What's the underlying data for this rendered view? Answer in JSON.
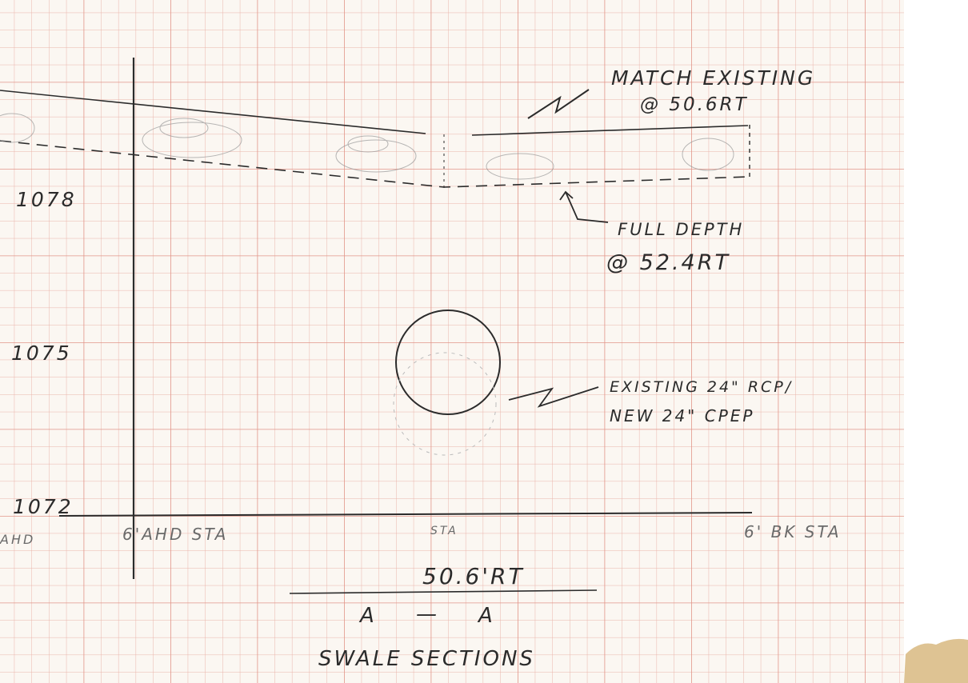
{
  "sheet": {
    "paper_color": "#fbf7f2",
    "grid_color": "#e8a49a",
    "ink_color": "#2b2b2b",
    "stain_color": "#d8b880"
  },
  "elevation_labels": [
    "1078",
    "1075",
    "1072"
  ],
  "station_labels": {
    "left_edge": "AHD",
    "ahead": "6'AHD STA",
    "center": "STA",
    "back": "6' BK STA"
  },
  "annotations": {
    "match_existing_line1": "MATCH EXISTING",
    "match_existing_line2": "@ 50.6RT",
    "full_depth_line1": "FULL DEPTH",
    "full_depth_line2": "@ 52.4RT",
    "pipe_line1": "EXISTING 24\" RCP/",
    "pipe_line2": "NEW 24\" CPEP"
  },
  "title": {
    "offset": "50.6'RT",
    "section_left": "A",
    "section_dash": "—",
    "section_right": "A",
    "name": "SWALE SECTIONS"
  }
}
